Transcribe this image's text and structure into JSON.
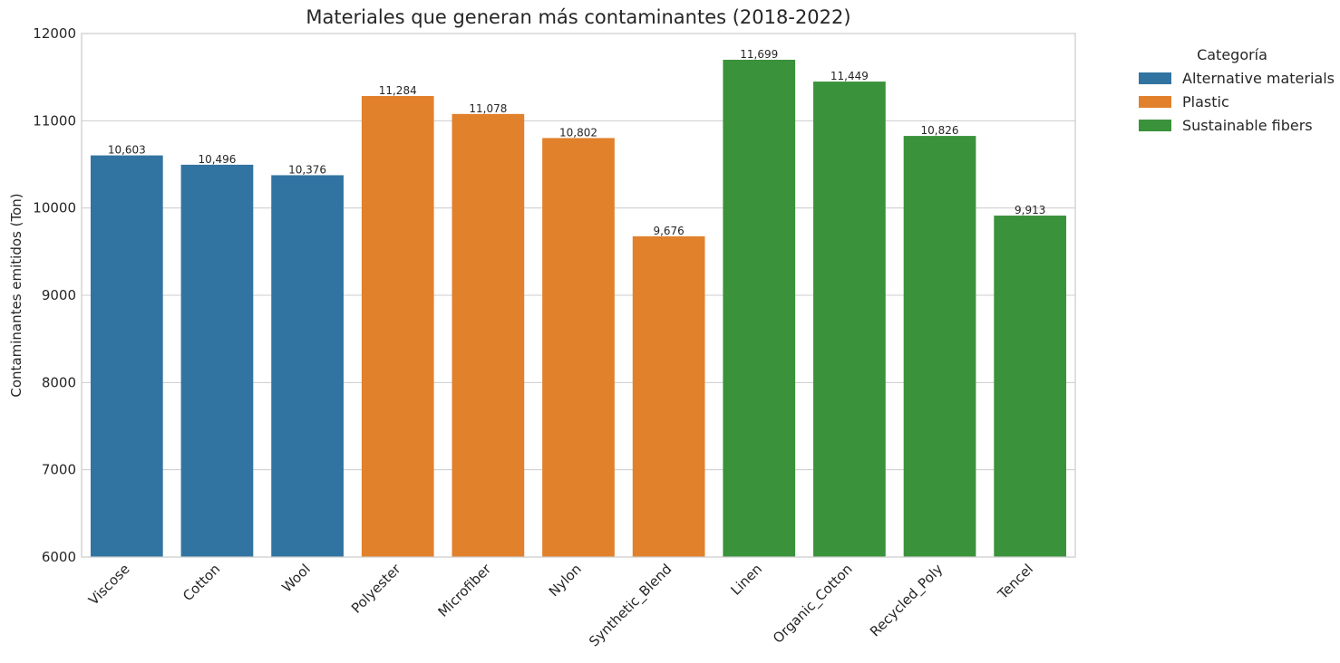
{
  "chart_data": {
    "type": "bar",
    "title": "Materiales que generan más contaminantes (2018-2022)",
    "xlabel": "",
    "ylabel": "Contaminantes emitidos (Ton)",
    "ylim": [
      6000,
      12000
    ],
    "yticks": [
      6000,
      7000,
      8000,
      9000,
      10000,
      11000,
      12000
    ],
    "grid": true,
    "legend": {
      "title": "Categoría",
      "placement": "outside-right",
      "entries": [
        {
          "name": "Alternative materials",
          "color": "#3274a1"
        },
        {
          "name": "Plastic",
          "color": "#e1812c"
        },
        {
          "name": "Sustainable fibers",
          "color": "#3a923a"
        }
      ]
    },
    "categories": [
      "Viscose",
      "Cotton",
      "Wool",
      "Polyester",
      "Microfiber",
      "Nylon",
      "Synthetic_Blend",
      "Linen",
      "Organic_Cotton",
      "Recycled_Poly",
      "Tencel"
    ],
    "values": [
      10603,
      10496,
      10376,
      11284,
      11078,
      10802,
      9676,
      11699,
      11449,
      10826,
      9913
    ],
    "value_labels": [
      "10,603",
      "10,496",
      "10,376",
      "11,284",
      "11,078",
      "10,802",
      "9,676",
      "11,699",
      "11,449",
      "10,826",
      "9,913"
    ],
    "bar_categories": [
      "Alternative materials",
      "Alternative materials",
      "Alternative materials",
      "Plastic",
      "Plastic",
      "Plastic",
      "Plastic",
      "Sustainable fibers",
      "Sustainable fibers",
      "Sustainable fibers",
      "Sustainable fibers"
    ],
    "colors": {
      "Alternative materials": "#3274a1",
      "Plastic": "#e1812c",
      "Sustainable fibers": "#3a923a",
      "grid": "#cccccc",
      "frame": "#cccccc",
      "text": "#262626"
    }
  }
}
